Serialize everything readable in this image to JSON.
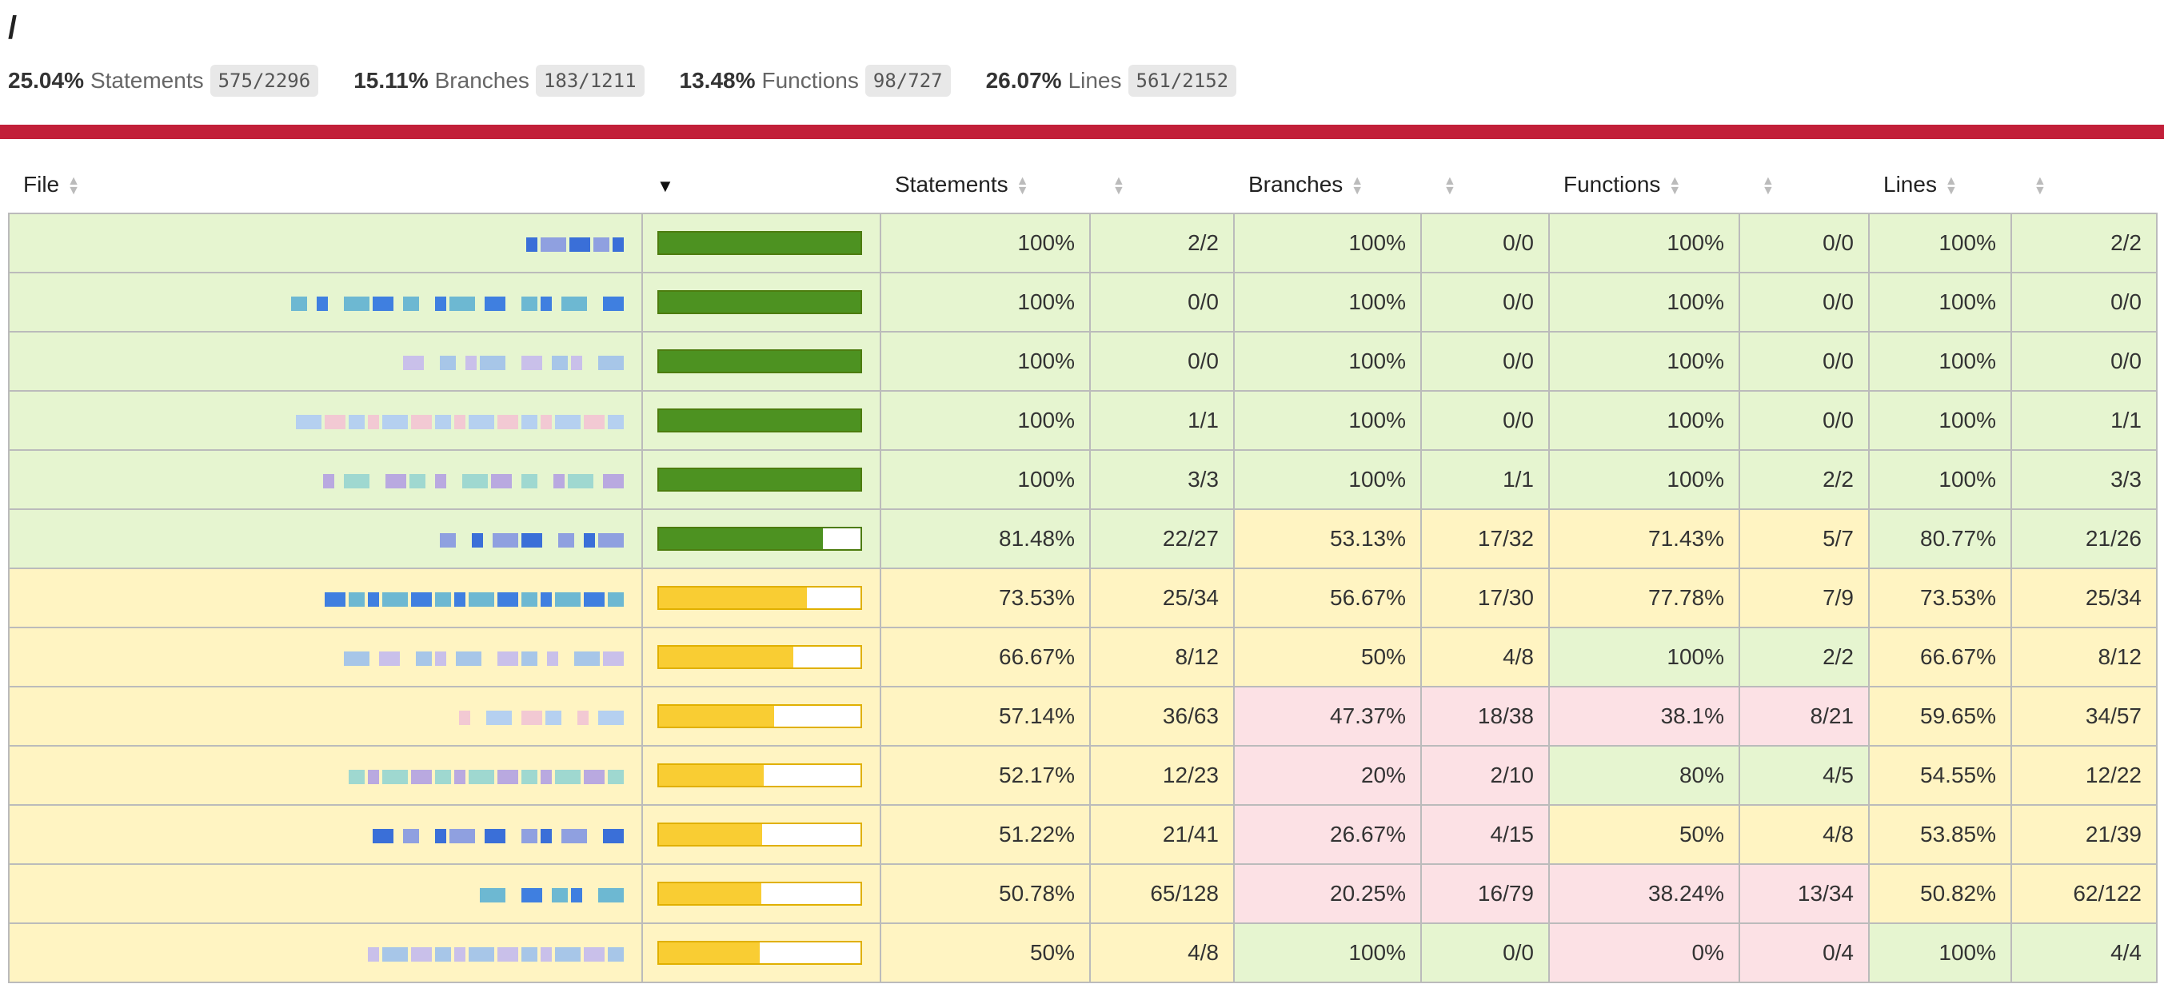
{
  "header": {
    "path": "/",
    "summary": [
      {
        "pct": "25.04%",
        "label": "Statements",
        "fraction": "575/2296"
      },
      {
        "pct": "15.11%",
        "label": "Branches",
        "fraction": "183/1211"
      },
      {
        "pct": "13.48%",
        "label": "Functions",
        "fraction": "98/727"
      },
      {
        "pct": "26.07%",
        "label": "Lines",
        "fraction": "561/2152"
      }
    ]
  },
  "colors": {
    "status_line": "#c21f39",
    "high_bg": "#e6f5d0",
    "medium_bg": "#fff4c2",
    "low_bg": "#fce1e5",
    "high_bar": "#4d9221",
    "medium_bar": "#f9cd33"
  },
  "table": {
    "columns": {
      "file": "File",
      "statements": "Statements",
      "branches": "Branches",
      "functions": "Functions",
      "lines": "Lines"
    },
    "rows": [
      {
        "statements_pct": "100%",
        "statements_frac": "2/2",
        "branches_pct": "100%",
        "branches_frac": "0/0",
        "functions_pct": "100%",
        "functions_frac": "0/0",
        "lines_pct": "100%",
        "lines_frac": "2/2",
        "fill": 1.0,
        "level": "high",
        "branch_level": "high",
        "function_level": "high",
        "line_level": "high"
      },
      {
        "statements_pct": "100%",
        "statements_frac": "0/0",
        "branches_pct": "100%",
        "branches_frac": "0/0",
        "functions_pct": "100%",
        "functions_frac": "0/0",
        "lines_pct": "100%",
        "lines_frac": "0/0",
        "fill": 1.0,
        "level": "high",
        "branch_level": "high",
        "function_level": "high",
        "line_level": "high"
      },
      {
        "statements_pct": "100%",
        "statements_frac": "0/0",
        "branches_pct": "100%",
        "branches_frac": "0/0",
        "functions_pct": "100%",
        "functions_frac": "0/0",
        "lines_pct": "100%",
        "lines_frac": "0/0",
        "fill": 1.0,
        "level": "high",
        "branch_level": "high",
        "function_level": "high",
        "line_level": "high"
      },
      {
        "statements_pct": "100%",
        "statements_frac": "1/1",
        "branches_pct": "100%",
        "branches_frac": "0/0",
        "functions_pct": "100%",
        "functions_frac": "0/0",
        "lines_pct": "100%",
        "lines_frac": "1/1",
        "fill": 1.0,
        "level": "high",
        "branch_level": "high",
        "function_level": "high",
        "line_level": "high"
      },
      {
        "statements_pct": "100%",
        "statements_frac": "3/3",
        "branches_pct": "100%",
        "branches_frac": "1/1",
        "functions_pct": "100%",
        "functions_frac": "2/2",
        "lines_pct": "100%",
        "lines_frac": "3/3",
        "fill": 1.0,
        "level": "high",
        "branch_level": "high",
        "function_level": "high",
        "line_level": "high"
      },
      {
        "statements_pct": "81.48%",
        "statements_frac": "22/27",
        "branches_pct": "53.13%",
        "branches_frac": "17/32",
        "functions_pct": "71.43%",
        "functions_frac": "5/7",
        "lines_pct": "80.77%",
        "lines_frac": "21/26",
        "fill": 0.8148,
        "level": "high",
        "branch_level": "medium",
        "function_level": "medium",
        "line_level": "high"
      },
      {
        "statements_pct": "73.53%",
        "statements_frac": "25/34",
        "branches_pct": "56.67%",
        "branches_frac": "17/30",
        "functions_pct": "77.78%",
        "functions_frac": "7/9",
        "lines_pct": "73.53%",
        "lines_frac": "25/34",
        "fill": 0.7353,
        "level": "medium",
        "branch_level": "medium",
        "function_level": "medium",
        "line_level": "medium"
      },
      {
        "statements_pct": "66.67%",
        "statements_frac": "8/12",
        "branches_pct": "50%",
        "branches_frac": "4/8",
        "functions_pct": "100%",
        "functions_frac": "2/2",
        "lines_pct": "66.67%",
        "lines_frac": "8/12",
        "fill": 0.6667,
        "level": "medium",
        "branch_level": "medium",
        "function_level": "high",
        "line_level": "medium"
      },
      {
        "statements_pct": "57.14%",
        "statements_frac": "36/63",
        "branches_pct": "47.37%",
        "branches_frac": "18/38",
        "functions_pct": "38.1%",
        "functions_frac": "8/21",
        "lines_pct": "59.65%",
        "lines_frac": "34/57",
        "fill": 0.5714,
        "level": "medium",
        "branch_level": "low",
        "function_level": "low",
        "line_level": "medium"
      },
      {
        "statements_pct": "52.17%",
        "statements_frac": "12/23",
        "branches_pct": "20%",
        "branches_frac": "2/10",
        "functions_pct": "80%",
        "functions_frac": "4/5",
        "lines_pct": "54.55%",
        "lines_frac": "12/22",
        "fill": 0.5217,
        "level": "medium",
        "branch_level": "low",
        "function_level": "high",
        "line_level": "medium"
      },
      {
        "statements_pct": "51.22%",
        "statements_frac": "21/41",
        "branches_pct": "26.67%",
        "branches_frac": "4/15",
        "functions_pct": "50%",
        "functions_frac": "4/8",
        "lines_pct": "53.85%",
        "lines_frac": "21/39",
        "fill": 0.5122,
        "level": "medium",
        "branch_level": "low",
        "function_level": "medium",
        "line_level": "medium"
      },
      {
        "statements_pct": "50.78%",
        "statements_frac": "65/128",
        "branches_pct": "20.25%",
        "branches_frac": "16/79",
        "functions_pct": "38.24%",
        "functions_frac": "13/34",
        "lines_pct": "50.82%",
        "lines_frac": "62/122",
        "fill": 0.5078,
        "level": "medium",
        "branch_level": "low",
        "function_level": "low",
        "line_level": "medium"
      },
      {
        "statements_pct": "50%",
        "statements_frac": "4/8",
        "branches_pct": "100%",
        "branches_frac": "0/0",
        "functions_pct": "0%",
        "functions_frac": "0/4",
        "lines_pct": "100%",
        "lines_frac": "4/4",
        "fill": 0.5,
        "level": "medium",
        "branch_level": "high",
        "function_level": "low",
        "line_level": "high"
      }
    ]
  }
}
